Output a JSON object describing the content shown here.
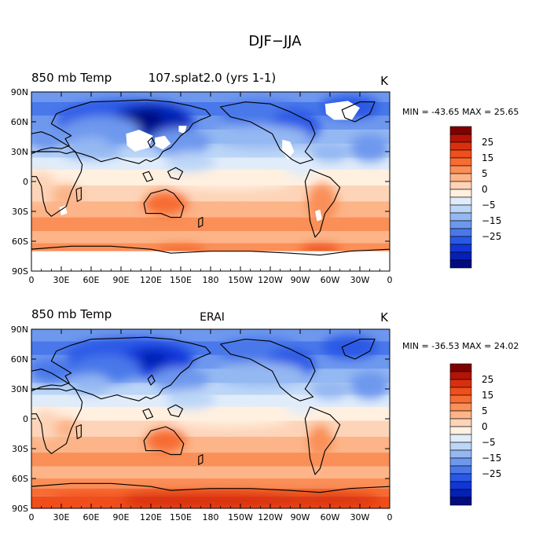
{
  "figure": {
    "title": "DJF−JJA"
  },
  "panels": [
    {
      "left_label": "850 mb Temp",
      "center_label": "107.splat2.0 (yrs 1-1)",
      "units": "K",
      "stats": "MIN = -43.65 MAX =  25.65"
    },
    {
      "left_label": "850 mb Temp",
      "center_label": "ERAI",
      "units": "K",
      "stats": "MIN = -36.53 MAX =  24.02"
    }
  ],
  "axes": {
    "lat_ticks": [
      "90N",
      "60N",
      "30N",
      "0",
      "30S",
      "60S",
      "90S"
    ],
    "lon_ticks": [
      "0",
      "30E",
      "60E",
      "90E",
      "120E",
      "150E",
      "180",
      "150W",
      "120W",
      "90W",
      "60W",
      "30W",
      "0"
    ]
  },
  "colorbar": {
    "labels": [
      "25",
      "15",
      "5",
      "0",
      "−5",
      "−15",
      "−25"
    ],
    "colors": [
      "#7f0000",
      "#b31405",
      "#d8300e",
      "#f04e1b",
      "#f76c33",
      "#fa8f58",
      "#fcb488",
      "#fdd4b8",
      "#fff0e0",
      "#e0ecfa",
      "#bcd6f7",
      "#94b8f2",
      "#6e98ee",
      "#4a78ea",
      "#2a58e6",
      "#1036d8",
      "#0520b4",
      "#000c80"
    ]
  }
}
